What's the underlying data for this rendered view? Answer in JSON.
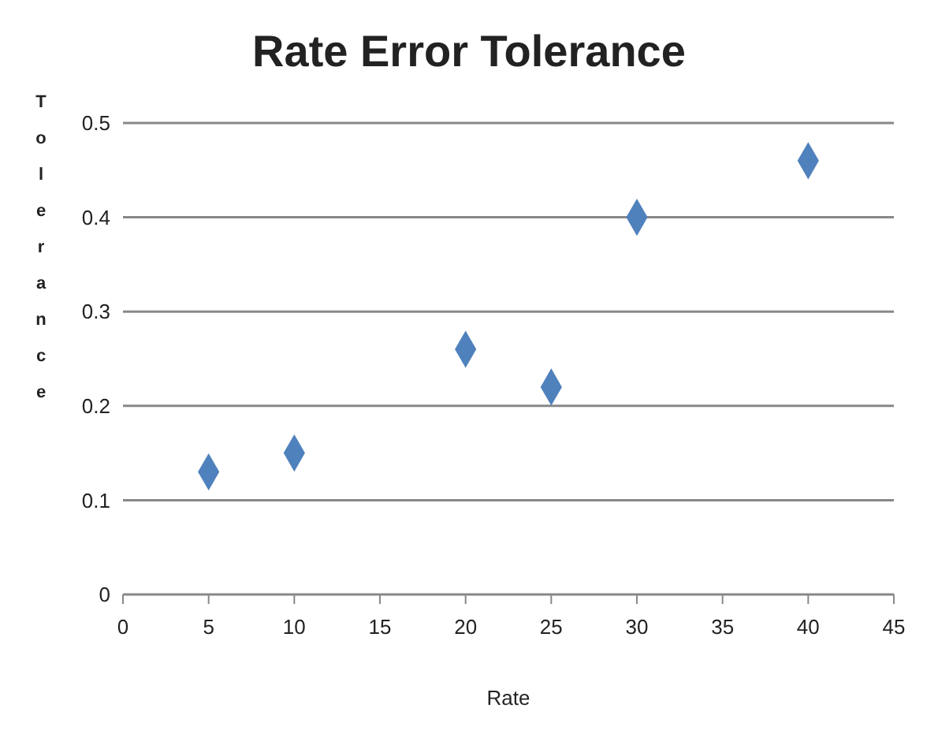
{
  "chart_data": {
    "type": "scatter",
    "title": "Rate Error Tolerance",
    "xlabel": "Rate",
    "ylabel": "Tolerance",
    "x": [
      5,
      10,
      20,
      25,
      30,
      40
    ],
    "values": [
      0.13,
      0.15,
      0.26,
      0.22,
      0.4,
      0.46
    ],
    "color": "#4f81bd",
    "marker": "diamond",
    "xlim": [
      0,
      45
    ],
    "xticks": [
      0,
      5,
      10,
      15,
      20,
      25,
      30,
      35,
      40,
      45
    ],
    "ylim": [
      0,
      0.5
    ],
    "yticks": [
      0,
      0.1,
      0.2,
      0.3,
      0.4,
      0.5
    ],
    "grid": "y"
  }
}
